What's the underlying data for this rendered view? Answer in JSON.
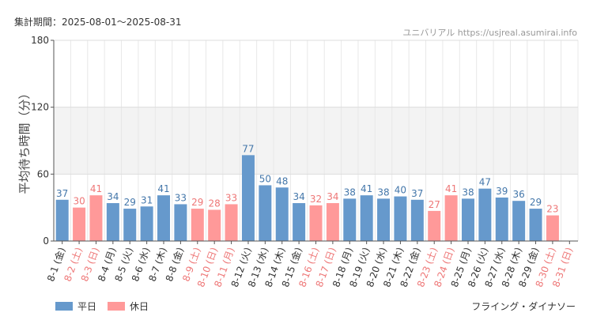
{
  "header": {
    "period_label": "集計期間：2025-08-01～2025-08-31",
    "source": "ユニバリアル https://usjreal.asumirai.info"
  },
  "attraction": "フライング・ダイナソー",
  "colors": {
    "weekday": "#6699cc",
    "holiday": "#ff9999",
    "holiday_text": "#ee7777",
    "weekday_text": "#4477aa"
  },
  "chart_data": {
    "type": "bar",
    "ylabel": "平均待ち時間（分）",
    "ylim": [
      0,
      180
    ],
    "yticks": [
      0,
      60,
      120,
      180
    ],
    "shaded_band": [
      60,
      120
    ],
    "grid": true,
    "legend": {
      "position": "bottom-left",
      "entries": [
        {
          "name": "平日",
          "color": "#6699cc"
        },
        {
          "name": "休日",
          "color": "#ff9999"
        }
      ]
    },
    "categories": [
      "8-1 (金)",
      "8-2 (土)",
      "8-3 (日)",
      "8-4 (月)",
      "8-5 (火)",
      "8-6 (水)",
      "8-7 (木)",
      "8-8 (金)",
      "8-9 (土)",
      "8-10 (日)",
      "8-11 (月)",
      "8-12 (火)",
      "8-13 (水)",
      "8-14 (木)",
      "8-15 (金)",
      "8-16 (土)",
      "8-17 (日)",
      "8-18 (月)",
      "8-19 (火)",
      "8-20 (水)",
      "8-21 (木)",
      "8-22 (金)",
      "8-23 (土)",
      "8-24 (日)",
      "8-25 (月)",
      "8-26 (火)",
      "8-27 (水)",
      "8-28 (木)",
      "8-29 (金)",
      "8-30 (土)",
      "8-31 (日)"
    ],
    "values": [
      37,
      30,
      41,
      34,
      29,
      31,
      41,
      33,
      29,
      28,
      33,
      77,
      50,
      48,
      34,
      32,
      34,
      38,
      41,
      38,
      40,
      37,
      27,
      41,
      38,
      47,
      39,
      36,
      29,
      23,
      null
    ],
    "holiday": [
      false,
      true,
      true,
      false,
      false,
      false,
      false,
      false,
      true,
      true,
      true,
      false,
      false,
      false,
      false,
      true,
      true,
      false,
      false,
      false,
      false,
      false,
      true,
      true,
      false,
      false,
      false,
      false,
      false,
      true,
      true
    ]
  }
}
